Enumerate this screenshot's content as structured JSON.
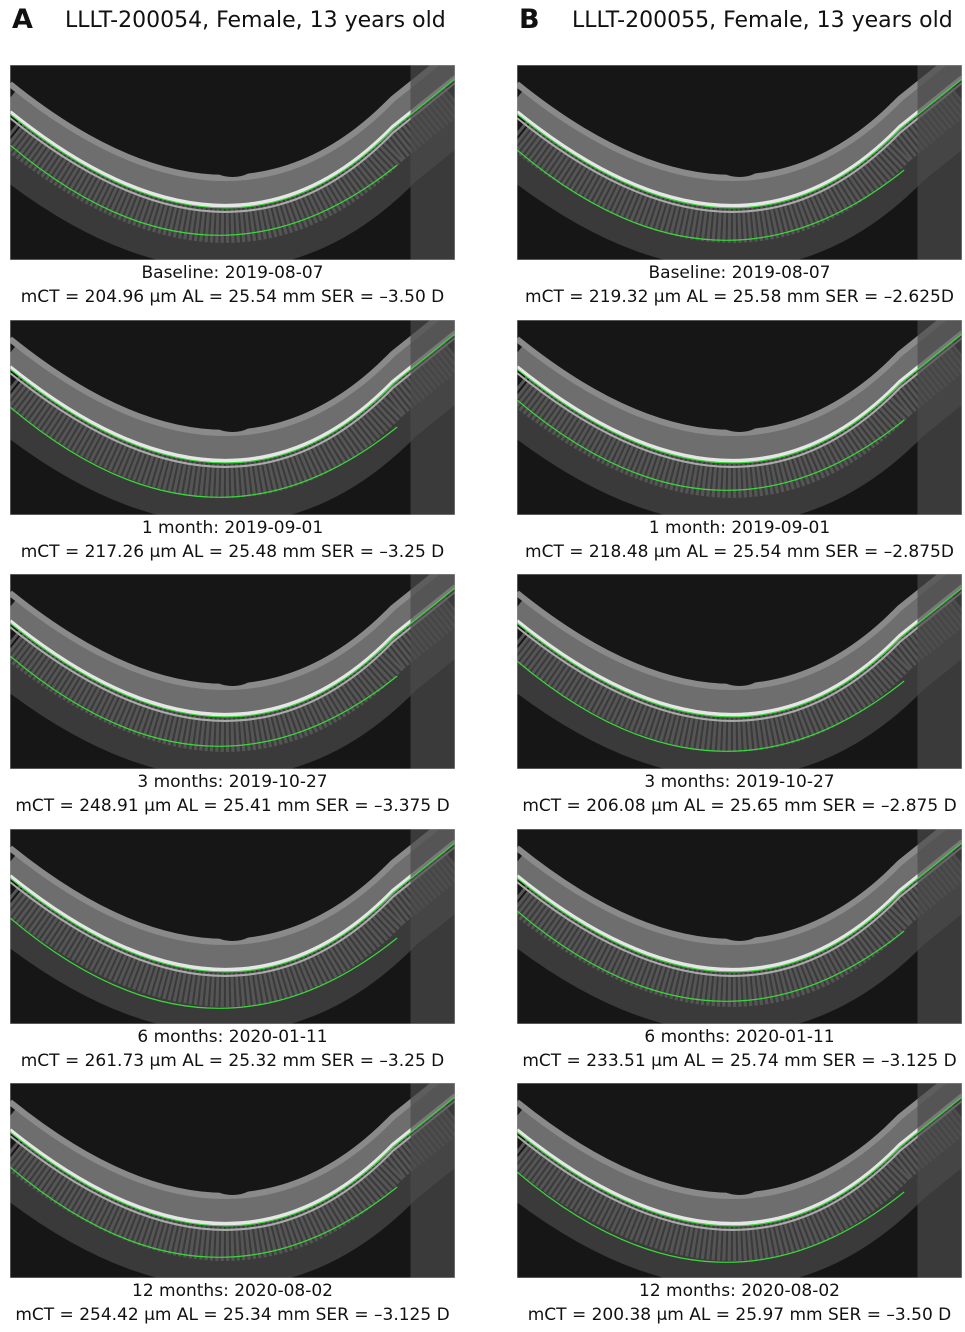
{
  "panels": [
    {
      "letter": "A",
      "title": "LLLT-200054, Female, 13 years old",
      "scans": [
        {
          "label": "Baseline: 2019-08-07",
          "metrics": "mCT = 204.96 μm AL = 25.54 mm SER = –3.50 D"
        },
        {
          "label": "1 month: 2019-09-01",
          "metrics": "mCT = 217.26 μm AL = 25.48 mm SER = –3.25 D"
        },
        {
          "label": "3 months: 2019-10-27",
          "metrics": "mCT = 248.91 μm AL = 25.41 mm SER = –3.375 D"
        },
        {
          "label": "6 months: 2020-01-11",
          "metrics": "mCT = 261.73 μm AL = 25.32 mm SER = –3.25 D"
        },
        {
          "label": "12 months: 2020-08-02",
          "metrics": "mCT = 254.42 μm AL = 25.34 mm SER = –3.125 D"
        }
      ]
    },
    {
      "letter": "B",
      "title": "LLLT-200055, Female, 13 years old",
      "scans": [
        {
          "label": "Baseline: 2019-08-07",
          "metrics": "mCT = 219.32 μm AL = 25.58 mm SER = –2.625D"
        },
        {
          "label": "1 month: 2019-09-01",
          "metrics": "mCT = 218.48 μm AL = 25.54 mm SER = –2.875D"
        },
        {
          "label": "3 months: 2019-10-27",
          "metrics": "mCT = 206.08 μm AL = 25.65 mm SER = –2.875 D"
        },
        {
          "label": "6 months: 2020-01-11",
          "metrics": "mCT = 233.51 μm AL = 25.74 mm SER = –3.125 D"
        },
        {
          "label": "12 months: 2020-08-02",
          "metrics": "mCT = 200.38 μm AL = 25.97 mm SER = –3.50 D"
        }
      ]
    }
  ]
}
